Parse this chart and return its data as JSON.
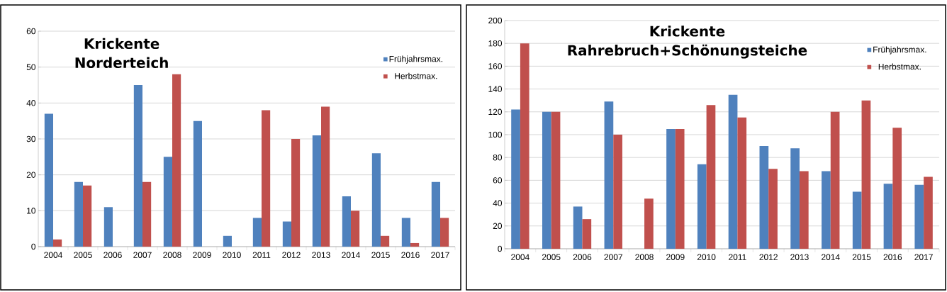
{
  "chart_data": [
    {
      "type": "bar",
      "title": "Krickente\nNorderteich",
      "categories": [
        "2004",
        "2005",
        "2006",
        "2007",
        "2008",
        "2009",
        "2010",
        "2011",
        "2012",
        "2013",
        "2014",
        "2015",
        "2016",
        "2017"
      ],
      "series": [
        {
          "name": "Frühjahrsmax.",
          "color": "#4f81bd",
          "values": [
            37,
            18,
            11,
            45,
            25,
            35,
            3,
            8,
            7,
            31,
            14,
            26,
            8,
            18
          ]
        },
        {
          "name": "Herbstmax.",
          "color": "#c0504d",
          "values": [
            2,
            17,
            0,
            18,
            48,
            0,
            0,
            38,
            30,
            39,
            10,
            3,
            1,
            8
          ]
        }
      ],
      "ylim": [
        0,
        60
      ],
      "yticks": [
        0,
        10,
        20,
        30,
        40,
        50,
        60
      ],
      "grid": "y",
      "legend": "top right"
    },
    {
      "type": "bar",
      "title": "Krickente\nRahrebruch+Schönungsteiche",
      "categories": [
        "2004",
        "2005",
        "2006",
        "2007",
        "2008",
        "2009",
        "2010",
        "2011",
        "2012",
        "2013",
        "2014",
        "2015",
        "2016",
        "2017"
      ],
      "series": [
        {
          "name": "Frühjahrsmax.",
          "color": "#4f81bd",
          "values": [
            122,
            120,
            37,
            129,
            0,
            105,
            74,
            135,
            90,
            88,
            68,
            50,
            57,
            56
          ]
        },
        {
          "name": "Herbstmax.",
          "color": "#c0504d",
          "values": [
            180,
            120,
            26,
            100,
            44,
            105,
            126,
            115,
            70,
            68,
            120,
            130,
            106,
            63
          ]
        }
      ],
      "ylim": [
        0,
        200
      ],
      "yticks": [
        0,
        20,
        40,
        60,
        80,
        100,
        120,
        140,
        160,
        180,
        200
      ],
      "grid": "y",
      "legend": "top right"
    }
  ]
}
